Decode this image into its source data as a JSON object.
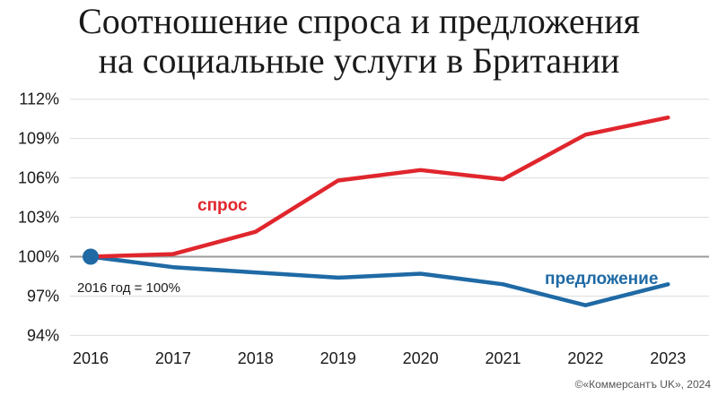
{
  "title_line1": "Соотношение спроса и предложения",
  "title_line2": "на социальные услуги в Британии",
  "note": "2016 год = 100%",
  "credit": "©«Коммерсантъ UK», 2024",
  "colors": {
    "demand": "#e0262d",
    "supply": "#1f6aa5",
    "baseline": "#999999",
    "grid": "#dddddd"
  },
  "chart_data": {
    "type": "line",
    "title": "Соотношение спроса и предложения на социальные услуги в Британии",
    "x": [
      "2016",
      "2017",
      "2018",
      "2019",
      "2020",
      "2021",
      "2022",
      "2023"
    ],
    "ylim": [
      94,
      112
    ],
    "yticks": [
      94,
      97,
      100,
      103,
      106,
      109,
      112
    ],
    "ytick_labels": [
      "94%",
      "97%",
      "100%",
      "103%",
      "106%",
      "109%",
      "112%"
    ],
    "grid": "horizontal",
    "series": [
      {
        "name": "спрос",
        "color": "#e0262d",
        "values": [
          100,
          100.2,
          101.9,
          105.8,
          106.6,
          105.9,
          109.3,
          110.6
        ]
      },
      {
        "name": "предложение",
        "color": "#1f6aa5",
        "values": [
          100,
          99.2,
          98.8,
          98.4,
          98.7,
          97.9,
          96.3,
          97.9
        ]
      }
    ]
  }
}
